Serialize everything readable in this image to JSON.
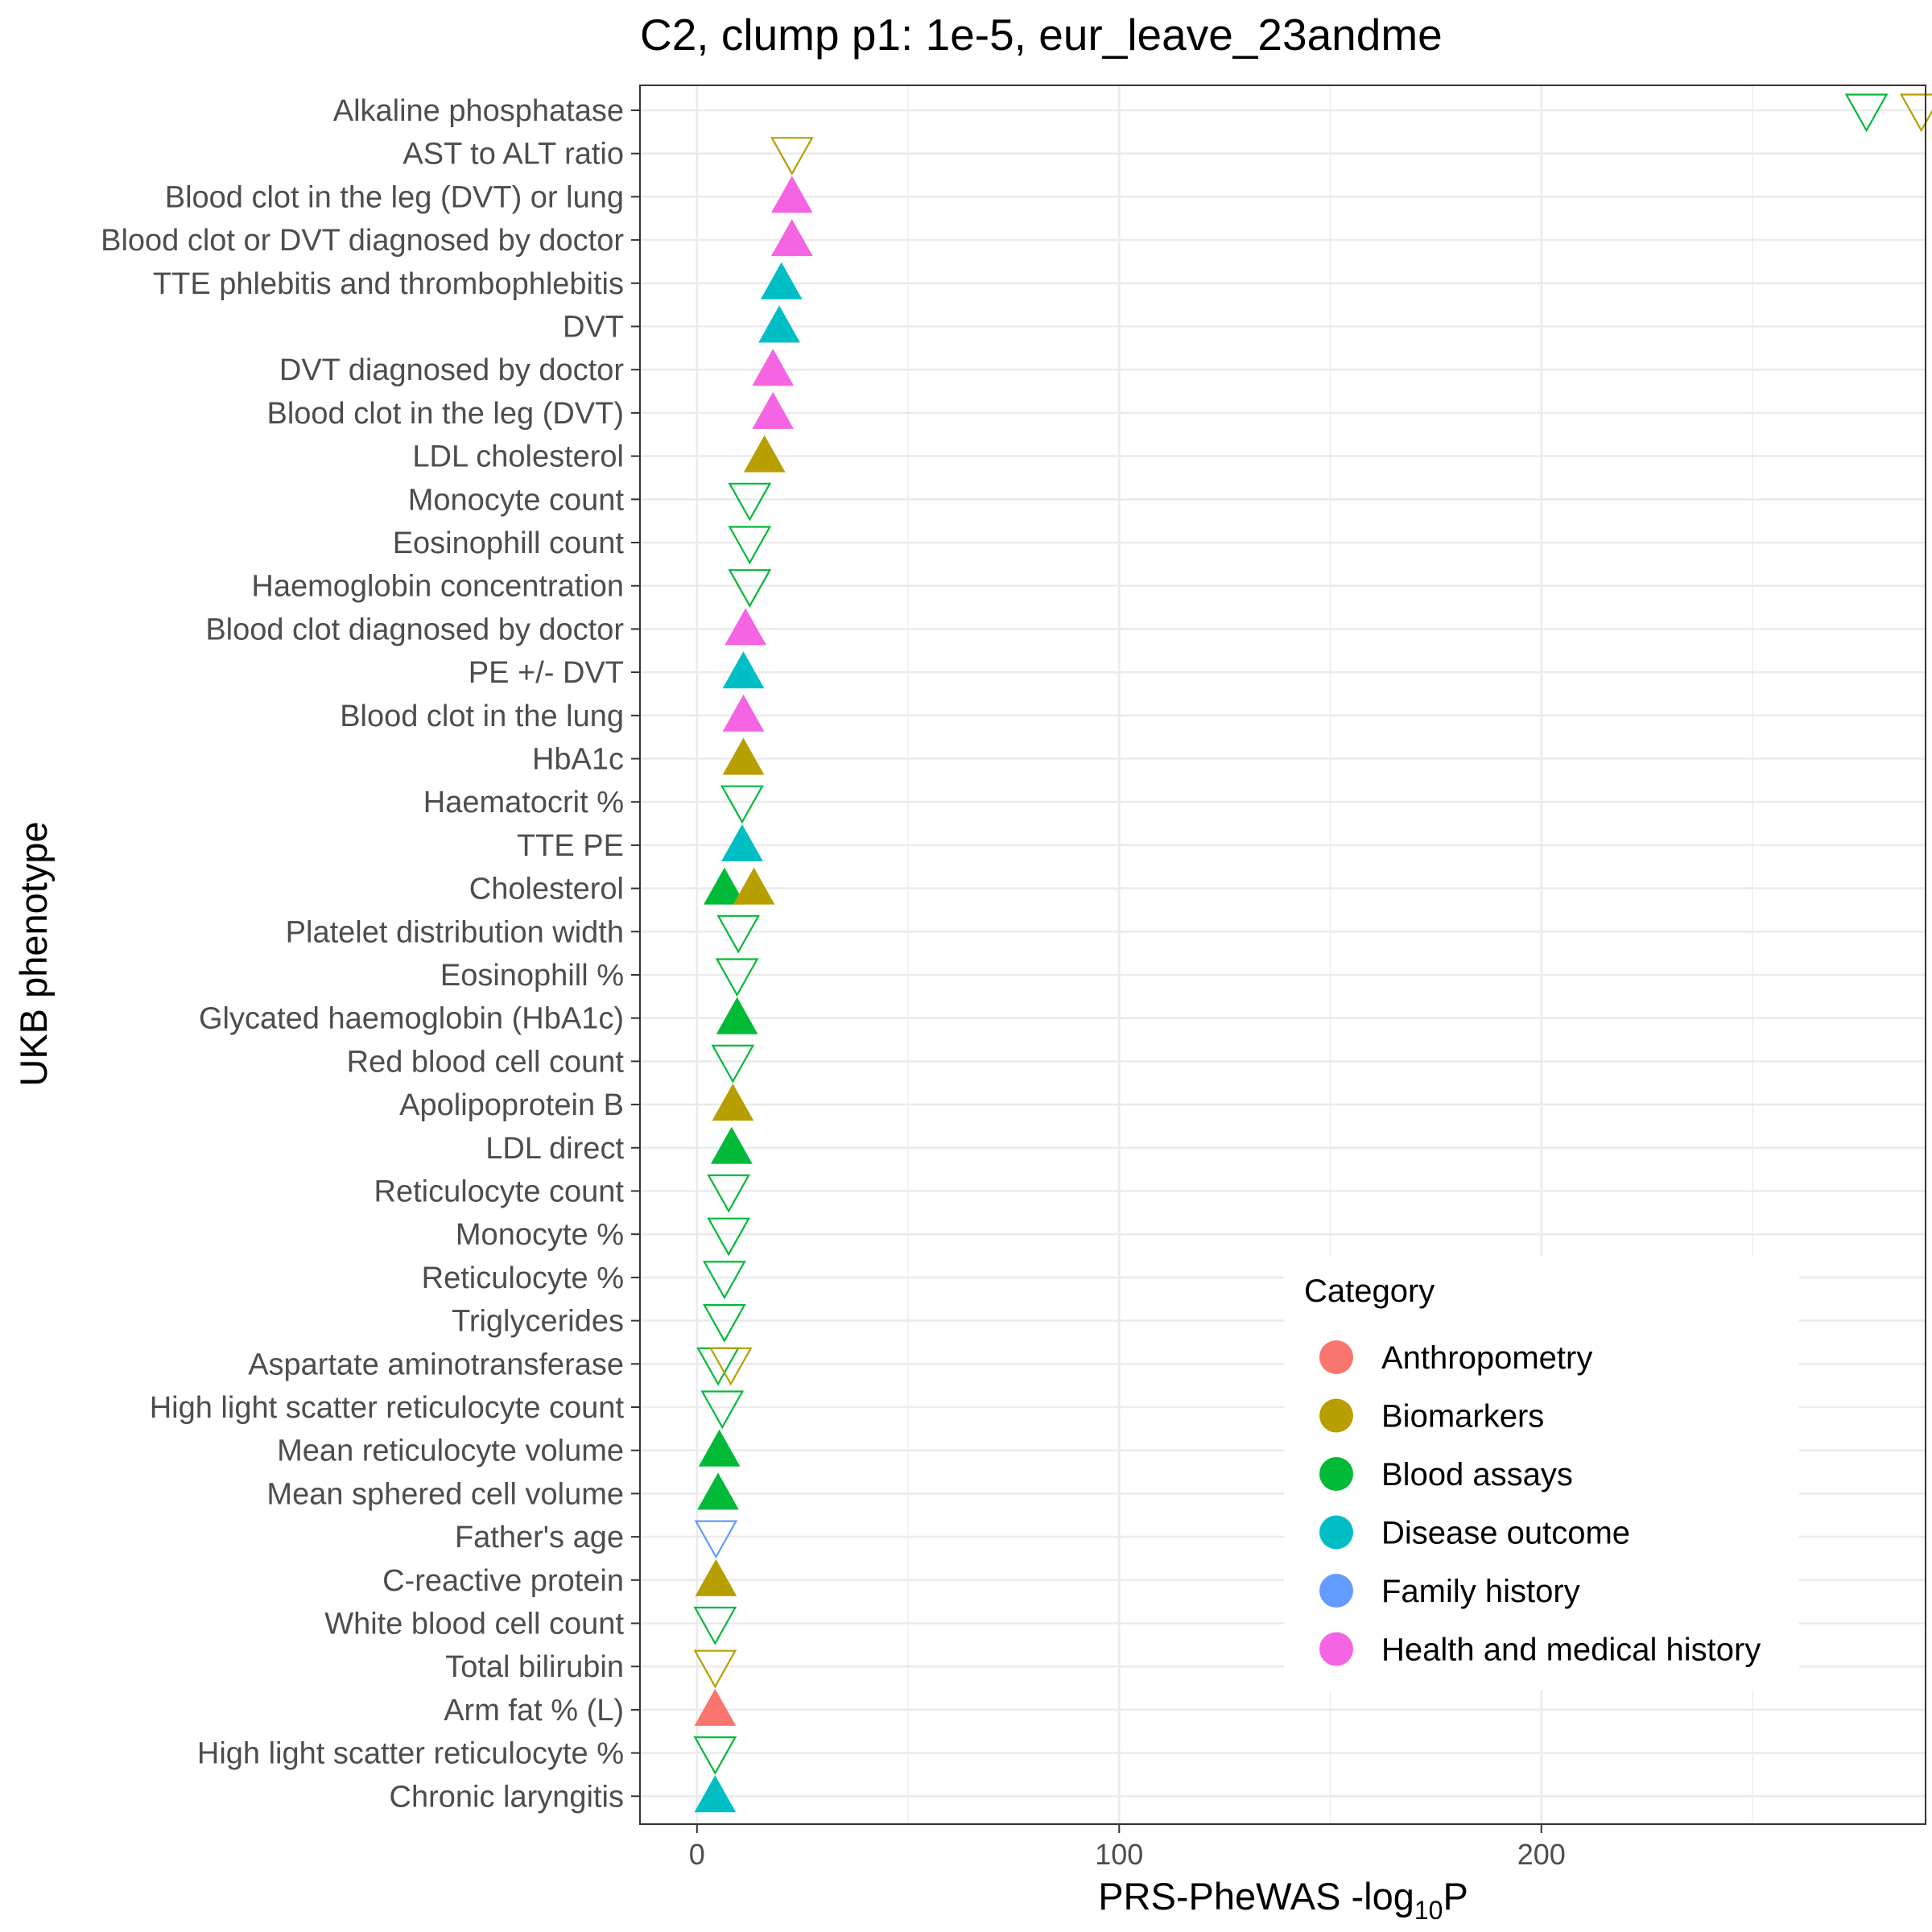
{
  "chart_data": {
    "type": "scatter",
    "title": "C2, clump p1: 1e-5, eur_leave_23andme",
    "xlabel": "PRS-PheWAS -log",
    "xlabel_sub": "10",
    "xlabel_suffix": "P",
    "ylabel": "UKB phenotype",
    "xlim": [
      -13.5,
      291
    ],
    "x_ticks": [
      0,
      100,
      200
    ],
    "x_tick_labels": [
      "0",
      "100",
      "200"
    ],
    "grid": true,
    "legend": {
      "title": "Category",
      "position": "right-inside",
      "items": [
        {
          "label": "Anthropometry",
          "color": "#F8766D"
        },
        {
          "label": "Biomarkers",
          "color": "#B79F00"
        },
        {
          "label": "Blood assays",
          "color": "#00BA38"
        },
        {
          "label": "Disease outcome",
          "color": "#00BFC4"
        },
        {
          "label": "Family history",
          "color": "#619CFF"
        },
        {
          "label": "Health and medical history",
          "color": "#F564E3"
        }
      ]
    },
    "categories": [
      "Alkaline phosphatase",
      "AST to ALT ratio",
      "Blood clot in the leg (DVT) or lung",
      "Blood clot or DVT diagnosed by doctor",
      "TTE phlebitis and thrombophlebitis",
      "DVT",
      "DVT diagnosed by doctor",
      "Blood clot in the leg (DVT)",
      "LDL cholesterol",
      "Monocyte count",
      "Eosinophill count",
      "Haemoglobin concentration",
      "Blood clot diagnosed by doctor",
      "PE +/- DVT",
      "Blood clot in the lung",
      "HbA1c",
      "Haematocrit %",
      "TTE PE",
      "Cholesterol",
      "Platelet distribution width",
      "Eosinophill %",
      "Glycated haemoglobin (HbA1c)",
      "Red blood cell count",
      "Apolipoprotein B",
      "LDL direct",
      "Reticulocyte count",
      "Monocyte %",
      "Reticulocyte %",
      "Triglycerides",
      "Aspartate aminotransferase",
      "High light scatter reticulocyte count",
      "Mean reticulocyte volume",
      "Mean sphered cell volume",
      "Father's age",
      "C-reactive protein",
      "White blood cell count",
      "Total bilirubin",
      "Arm fat % (L)",
      "High light scatter reticulocyte %",
      "Chronic laryngitis"
    ],
    "points": [
      {
        "phenotype": "Alkaline phosphatase",
        "x": 277,
        "category": "Blood assays",
        "direction": "down"
      },
      {
        "phenotype": "Alkaline phosphatase",
        "x": 290,
        "category": "Biomarkers",
        "direction": "down"
      },
      {
        "phenotype": "AST to ALT ratio",
        "x": 22.5,
        "category": "Biomarkers",
        "direction": "down"
      },
      {
        "phenotype": "Blood clot in the leg (DVT) or lung",
        "x": 22.5,
        "category": "Health and medical history",
        "direction": "up"
      },
      {
        "phenotype": "Blood clot or DVT diagnosed by doctor",
        "x": 22.5,
        "category": "Health and medical history",
        "direction": "up"
      },
      {
        "phenotype": "TTE phlebitis and thrombophlebitis",
        "x": 20,
        "category": "Disease outcome",
        "direction": "up"
      },
      {
        "phenotype": "DVT",
        "x": 19.5,
        "category": "Disease outcome",
        "direction": "up"
      },
      {
        "phenotype": "DVT diagnosed by doctor",
        "x": 18,
        "category": "Health and medical history",
        "direction": "up"
      },
      {
        "phenotype": "Blood clot in the leg (DVT)",
        "x": 18,
        "category": "Health and medical history",
        "direction": "up"
      },
      {
        "phenotype": "LDL cholesterol",
        "x": 16,
        "category": "Biomarkers",
        "direction": "up"
      },
      {
        "phenotype": "Monocyte count",
        "x": 12.5,
        "category": "Blood assays",
        "direction": "down"
      },
      {
        "phenotype": "Eosinophill count",
        "x": 12.5,
        "category": "Blood assays",
        "direction": "down"
      },
      {
        "phenotype": "Haemoglobin concentration",
        "x": 12.5,
        "category": "Blood assays",
        "direction": "down"
      },
      {
        "phenotype": "Blood clot diagnosed by doctor",
        "x": 11.5,
        "category": "Health and medical history",
        "direction": "up"
      },
      {
        "phenotype": "PE +/- DVT",
        "x": 11,
        "category": "Disease outcome",
        "direction": "up"
      },
      {
        "phenotype": "Blood clot in the lung",
        "x": 11,
        "category": "Health and medical history",
        "direction": "up"
      },
      {
        "phenotype": "HbA1c",
        "x": 11,
        "category": "Biomarkers",
        "direction": "up"
      },
      {
        "phenotype": "Haematocrit %",
        "x": 10.7,
        "category": "Blood assays",
        "direction": "down"
      },
      {
        "phenotype": "TTE PE",
        "x": 10.7,
        "category": "Disease outcome",
        "direction": "up"
      },
      {
        "phenotype": "Cholesterol",
        "x": 6.5,
        "category": "Blood assays",
        "direction": "up"
      },
      {
        "phenotype": "Cholesterol",
        "x": 13.5,
        "category": "Biomarkers",
        "direction": "up"
      },
      {
        "phenotype": "Platelet distribution width",
        "x": 9.8,
        "category": "Blood assays",
        "direction": "down"
      },
      {
        "phenotype": "Eosinophill %",
        "x": 9.5,
        "category": "Blood assays",
        "direction": "down"
      },
      {
        "phenotype": "Glycated haemoglobin (HbA1c)",
        "x": 9.5,
        "category": "Blood assays",
        "direction": "up"
      },
      {
        "phenotype": "Red blood cell count",
        "x": 8.5,
        "category": "Blood assays",
        "direction": "down"
      },
      {
        "phenotype": "Apolipoprotein B",
        "x": 8.5,
        "category": "Biomarkers",
        "direction": "up"
      },
      {
        "phenotype": "LDL direct",
        "x": 8.2,
        "category": "Blood assays",
        "direction": "up"
      },
      {
        "phenotype": "Reticulocyte count",
        "x": 7.5,
        "category": "Blood assays",
        "direction": "down"
      },
      {
        "phenotype": "Monocyte %",
        "x": 7.5,
        "category": "Blood assays",
        "direction": "down"
      },
      {
        "phenotype": "Reticulocyte %",
        "x": 6.5,
        "category": "Blood assays",
        "direction": "down"
      },
      {
        "phenotype": "Triglycerides",
        "x": 6.5,
        "category": "Blood assays",
        "direction": "down"
      },
      {
        "phenotype": "Aspartate aminotransferase",
        "x": 5,
        "category": "Blood assays",
        "direction": "down"
      },
      {
        "phenotype": "Aspartate aminotransferase",
        "x": 8,
        "category": "Biomarkers",
        "direction": "down"
      },
      {
        "phenotype": "High light scatter reticulocyte count",
        "x": 6,
        "category": "Blood assays",
        "direction": "down"
      },
      {
        "phenotype": "Mean reticulocyte volume",
        "x": 5.3,
        "category": "Blood assays",
        "direction": "up"
      },
      {
        "phenotype": "Mean sphered cell volume",
        "x": 5,
        "category": "Blood assays",
        "direction": "up"
      },
      {
        "phenotype": "Father's age",
        "x": 4.5,
        "category": "Family history",
        "direction": "down"
      },
      {
        "phenotype": "C-reactive protein",
        "x": 4.5,
        "category": "Biomarkers",
        "direction": "up"
      },
      {
        "phenotype": "White blood cell count",
        "x": 4.3,
        "category": "Blood assays",
        "direction": "down"
      },
      {
        "phenotype": "Total bilirubin",
        "x": 4.3,
        "category": "Biomarkers",
        "direction": "down"
      },
      {
        "phenotype": "Arm fat % (L)",
        "x": 4.3,
        "category": "Anthropometry",
        "direction": "up"
      },
      {
        "phenotype": "High light scatter reticulocyte %",
        "x": 4.3,
        "category": "Blood assays",
        "direction": "down"
      },
      {
        "phenotype": "Chronic laryngitis",
        "x": 4.3,
        "category": "Disease outcome",
        "direction": "up"
      }
    ]
  }
}
